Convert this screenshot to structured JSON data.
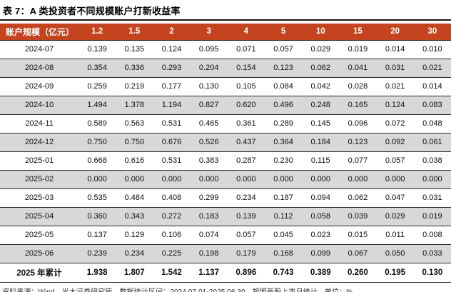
{
  "title": "表 7：A 类投资者不同规模账户打新收益率",
  "table": {
    "header_label": "账户规模（亿元）",
    "columns": [
      "1.2",
      "1.5",
      "2",
      "3",
      "4",
      "5",
      "10",
      "15",
      "20",
      "30"
    ],
    "rows": [
      {
        "label": "2024-07",
        "values": [
          "0.139",
          "0.135",
          "0.124",
          "0.095",
          "0.071",
          "0.057",
          "0.029",
          "0.019",
          "0.014",
          "0.010"
        ]
      },
      {
        "label": "2024-08",
        "values": [
          "0.354",
          "0.336",
          "0.293",
          "0.204",
          "0.154",
          "0.123",
          "0.062",
          "0.041",
          "0.031",
          "0.021"
        ]
      },
      {
        "label": "2024-09",
        "values": [
          "0.259",
          "0.219",
          "0.177",
          "0.130",
          "0.105",
          "0.084",
          "0.042",
          "0.028",
          "0.021",
          "0.014"
        ]
      },
      {
        "label": "2024-10",
        "values": [
          "1.494",
          "1.378",
          "1.194",
          "0.827",
          "0.620",
          "0.496",
          "0.248",
          "0.165",
          "0.124",
          "0.083"
        ]
      },
      {
        "label": "2024-11",
        "values": [
          "0.589",
          "0.563",
          "0.531",
          "0.465",
          "0.361",
          "0.289",
          "0.145",
          "0.096",
          "0.072",
          "0.048"
        ]
      },
      {
        "label": "2024-12",
        "values": [
          "0.750",
          "0.750",
          "0.676",
          "0.526",
          "0.437",
          "0.364",
          "0.184",
          "0.123",
          "0.092",
          "0.061"
        ]
      },
      {
        "label": "2025-01",
        "values": [
          "0.668",
          "0.616",
          "0.531",
          "0.383",
          "0.287",
          "0.230",
          "0.115",
          "0.077",
          "0.057",
          "0.038"
        ]
      },
      {
        "label": "2025-02",
        "values": [
          "0.000",
          "0.000",
          "0.000",
          "0.000",
          "0.000",
          "0.000",
          "0.000",
          "0.000",
          "0.000",
          "0.000"
        ]
      },
      {
        "label": "2025-03",
        "values": [
          "0.535",
          "0.484",
          "0.408",
          "0.299",
          "0.234",
          "0.187",
          "0.094",
          "0.062",
          "0.047",
          "0.031"
        ]
      },
      {
        "label": "2025-04",
        "values": [
          "0.360",
          "0.343",
          "0.272",
          "0.183",
          "0.139",
          "0.112",
          "0.058",
          "0.039",
          "0.029",
          "0.019"
        ]
      },
      {
        "label": "2025-05",
        "values": [
          "0.137",
          "0.129",
          "0.106",
          "0.074",
          "0.057",
          "0.045",
          "0.023",
          "0.015",
          "0.011",
          "0.008"
        ]
      },
      {
        "label": "2025-06",
        "values": [
          "0.239",
          "0.234",
          "0.225",
          "0.198",
          "0.179",
          "0.168",
          "0.099",
          "0.067",
          "0.050",
          "0.033"
        ]
      }
    ],
    "total_row": {
      "label": "2025 年累计",
      "values": [
        "1.938",
        "1.807",
        "1.542",
        "1.137",
        "0.896",
        "0.743",
        "0.389",
        "0.260",
        "0.195",
        "0.130"
      ]
    }
  },
  "footer": "资料来源：Wind，光大证券研究所，数据统计区间：2024.07.01-2025.06.30，按照新股上市日统计，单位：%",
  "colors": {
    "header_bg": "#c3441e",
    "header_text": "#ffffff",
    "stripe": "#d8d8d8",
    "title_rule": "#1c140e",
    "row_border": "#2a2a2a"
  }
}
